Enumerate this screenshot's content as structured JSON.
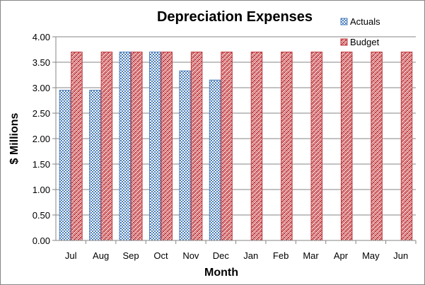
{
  "chart_data": {
    "type": "bar",
    "title": "Depreciation Expenses",
    "xlabel": "Month",
    "ylabel": "$ Millions",
    "categories": [
      "Jul",
      "Aug",
      "Sep",
      "Oct",
      "Nov",
      "Dec",
      "Jan",
      "Feb",
      "Mar",
      "Apr",
      "May",
      "Jun"
    ],
    "ylim": [
      0,
      4
    ],
    "yticks": [
      "0.00",
      "0.50",
      "1.00",
      "1.50",
      "2.00",
      "2.50",
      "3.00",
      "3.50",
      "4.00"
    ],
    "grid": true,
    "legend_position": "top-right",
    "series": [
      {
        "name": "Actuals",
        "color": "#4a7ebb",
        "pattern": "checkerboard",
        "values": [
          2.95,
          2.95,
          3.7,
          3.7,
          3.33,
          3.15,
          null,
          null,
          null,
          null,
          null,
          null
        ]
      },
      {
        "name": "Budget",
        "color": "#c0373b",
        "pattern": "weave",
        "values": [
          3.7,
          3.7,
          3.7,
          3.7,
          3.7,
          3.7,
          3.7,
          3.7,
          3.7,
          3.7,
          3.7,
          3.7
        ]
      }
    ]
  }
}
